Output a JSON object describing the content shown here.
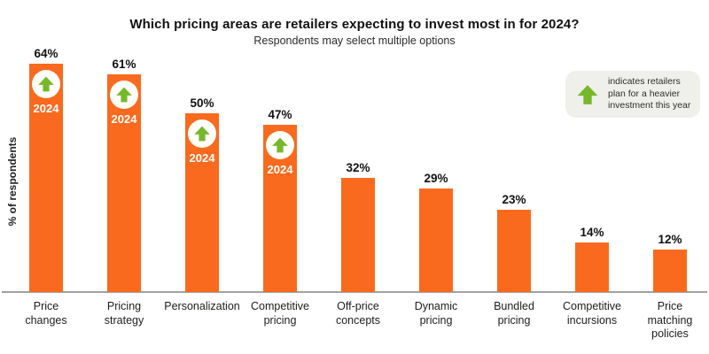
{
  "header": {
    "title": "Which pricing areas are retailers expecting to invest most in for 2024?",
    "subtitle": "Respondents may select multiple options"
  },
  "legend": {
    "icon": "arrow-up-icon",
    "text": "indicates retailers plan for a heavier investment this year"
  },
  "colors": {
    "bar_orange": "#F96A1E",
    "arrow_green": "#76B82A",
    "legend_bg": "#EFEFEB",
    "axis_line": "#A2A2A2",
    "text_dark": "#1D1D1B"
  },
  "chart_data": {
    "type": "bar",
    "title": "Which pricing areas are retailers expecting to invest most in for 2024?",
    "subtitle": "Respondents may select multiple options",
    "xlabel": "",
    "ylabel": "% of respondents",
    "ylim": [
      0,
      70
    ],
    "unit": "%",
    "grid": false,
    "legend_position": "top-right",
    "categories": [
      "Price changes",
      "Pricing strategy",
      "Personalization",
      "Competitive pricing",
      "Off-price concepts",
      "Dynamic pricing",
      "Bundled pricing",
      "Competitive incursions",
      "Price matching policies"
    ],
    "categories_display": [
      "Price\nchanges",
      "Pricing\nstrategy",
      "Personalization",
      "Competitive\npricing",
      "Off-price\nconcepts",
      "Dynamic\npricing",
      "Bundled\npricing",
      "Competitive\nincursions",
      "Price\nmatching\npolicies"
    ],
    "values": [
      64,
      61,
      50,
      47,
      32,
      29,
      23,
      14,
      12
    ],
    "value_labels": [
      "64%",
      "61%",
      "50%",
      "47%",
      "32%",
      "29%",
      "23%",
      "14%",
      "12%"
    ],
    "heavier_investment_flags": [
      true,
      true,
      true,
      true,
      false,
      false,
      false,
      false,
      false
    ],
    "badge_label": "2024"
  }
}
